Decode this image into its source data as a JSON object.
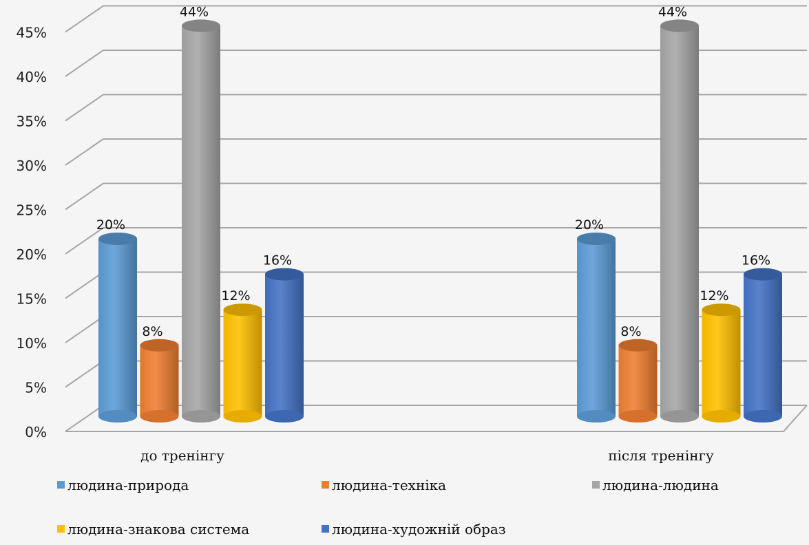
{
  "chart_data": {
    "type": "bar",
    "categories": [
      "до тренінгу",
      "після тренінгу"
    ],
    "series": [
      {
        "name": "людина-природа",
        "values": [
          20,
          20
        ],
        "color": "#5b9bd5"
      },
      {
        "name": "людина-техніка",
        "values": [
          8,
          8
        ],
        "color": "#ed7d31"
      },
      {
        "name": "людина-людина",
        "values": [
          44,
          44
        ],
        "color": "#a5a5a5"
      },
      {
        "name": "людина-знакова система",
        "values": [
          12,
          12
        ],
        "color": "#ffc000"
      },
      {
        "name": "людина-художній образ",
        "values": [
          16,
          16
        ],
        "color": "#4472c4"
      }
    ],
    "data_labels": [
      [
        "20%",
        "8%",
        "44%",
        "12%",
        "16%"
      ],
      [
        "20%",
        "8%",
        "44%",
        "12%",
        "16%"
      ]
    ],
    "y_ticks": [
      "0%",
      "5%",
      "10%",
      "15%",
      "20%",
      "25%",
      "30%",
      "35%",
      "40%",
      "45%"
    ],
    "ylim": [
      0,
      45
    ],
    "grid": true,
    "style": "3d-cylinder",
    "legend_position": "bottom"
  }
}
